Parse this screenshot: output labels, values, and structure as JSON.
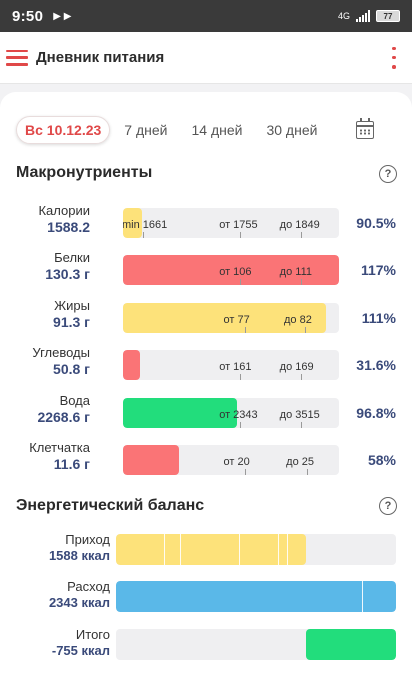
{
  "status_bar": {
    "time": "9:50",
    "network": "4G",
    "battery": "77"
  },
  "app_bar": {
    "title": "Дневник питания"
  },
  "period_tabs": [
    {
      "label": "Вс 10.12.23",
      "active": true
    },
    {
      "label": "7 дней",
      "active": false
    },
    {
      "label": "14 дней",
      "active": false
    },
    {
      "label": "30 дней",
      "active": false
    }
  ],
  "macros": {
    "title": "Макронутриенты",
    "rows": [
      {
        "label": "Калории",
        "value": "1588.2",
        "percent": "90.5%",
        "fill_fraction": 0.09,
        "fill_color": "#fde27a",
        "ticks": [
          {
            "text": "min 1661",
            "pos": 0.0
          },
          {
            "text": "от 1755",
            "pos": 0.45
          },
          {
            "text": "до 1849",
            "pos": 0.73
          }
        ]
      },
      {
        "label": "Белки",
        "value": "130.3 г",
        "percent": "117%",
        "fill_fraction": 1.0,
        "fill_color": "#fa7476",
        "ticks": [
          {
            "text": "от 106",
            "pos": 0.45
          },
          {
            "text": "до 111",
            "pos": 0.73
          }
        ]
      },
      {
        "label": "Жиры",
        "value": "91.3 г",
        "percent": "111%",
        "fill_fraction": 0.94,
        "fill_color": "#fde27a",
        "ticks": [
          {
            "text": "от 77",
            "pos": 0.47
          },
          {
            "text": "до 82",
            "pos": 0.75
          }
        ]
      },
      {
        "label": "Углеводы",
        "value": "50.8 г",
        "percent": "31.6%",
        "fill_fraction": 0.08,
        "fill_color": "#fa7476",
        "ticks": [
          {
            "text": "от 161",
            "pos": 0.45
          },
          {
            "text": "до 169",
            "pos": 0.73
          }
        ]
      },
      {
        "label": "Вода",
        "value": "2268.6 г",
        "percent": "96.8%",
        "fill_fraction": 0.53,
        "fill_color": "#22dd7c",
        "ticks": [
          {
            "text": "от 2343",
            "pos": 0.45
          },
          {
            "text": "до 3515",
            "pos": 0.73
          }
        ]
      },
      {
        "label": "Клетчатка",
        "value": "11.6 г",
        "percent": "58%",
        "fill_fraction": 0.26,
        "fill_color": "#fa7476",
        "ticks": [
          {
            "text": "от 20",
            "pos": 0.47
          },
          {
            "text": "до 25",
            "pos": 0.76
          }
        ]
      }
    ]
  },
  "energy": {
    "title": "Энергетический баланс",
    "rows": [
      {
        "label": "Приход",
        "value": "1588 ккал",
        "fill_start": 0.0,
        "fill_end": 0.68,
        "fill_color": "#fde27a",
        "separators": [
          0.17,
          0.23,
          0.44,
          0.58,
          0.61
        ]
      },
      {
        "label": "Расход",
        "value": "2343 ккал",
        "fill_start": 0.0,
        "fill_end": 1.0,
        "fill_color": "#5ab8e8",
        "separators": [
          0.88
        ]
      },
      {
        "label": "Итого",
        "value": "-755 ккал",
        "fill_start": 0.68,
        "fill_end": 1.0,
        "fill_color": "#22dd7c",
        "separators": []
      }
    ]
  },
  "icons": {
    "menu": "hamburger-icon",
    "more": "more-vertical-icon",
    "calendar": "calendar-icon",
    "help": "help-icon"
  },
  "colors": {
    "accent": "#e04848",
    "value_text": "#3a4a7a"
  }
}
